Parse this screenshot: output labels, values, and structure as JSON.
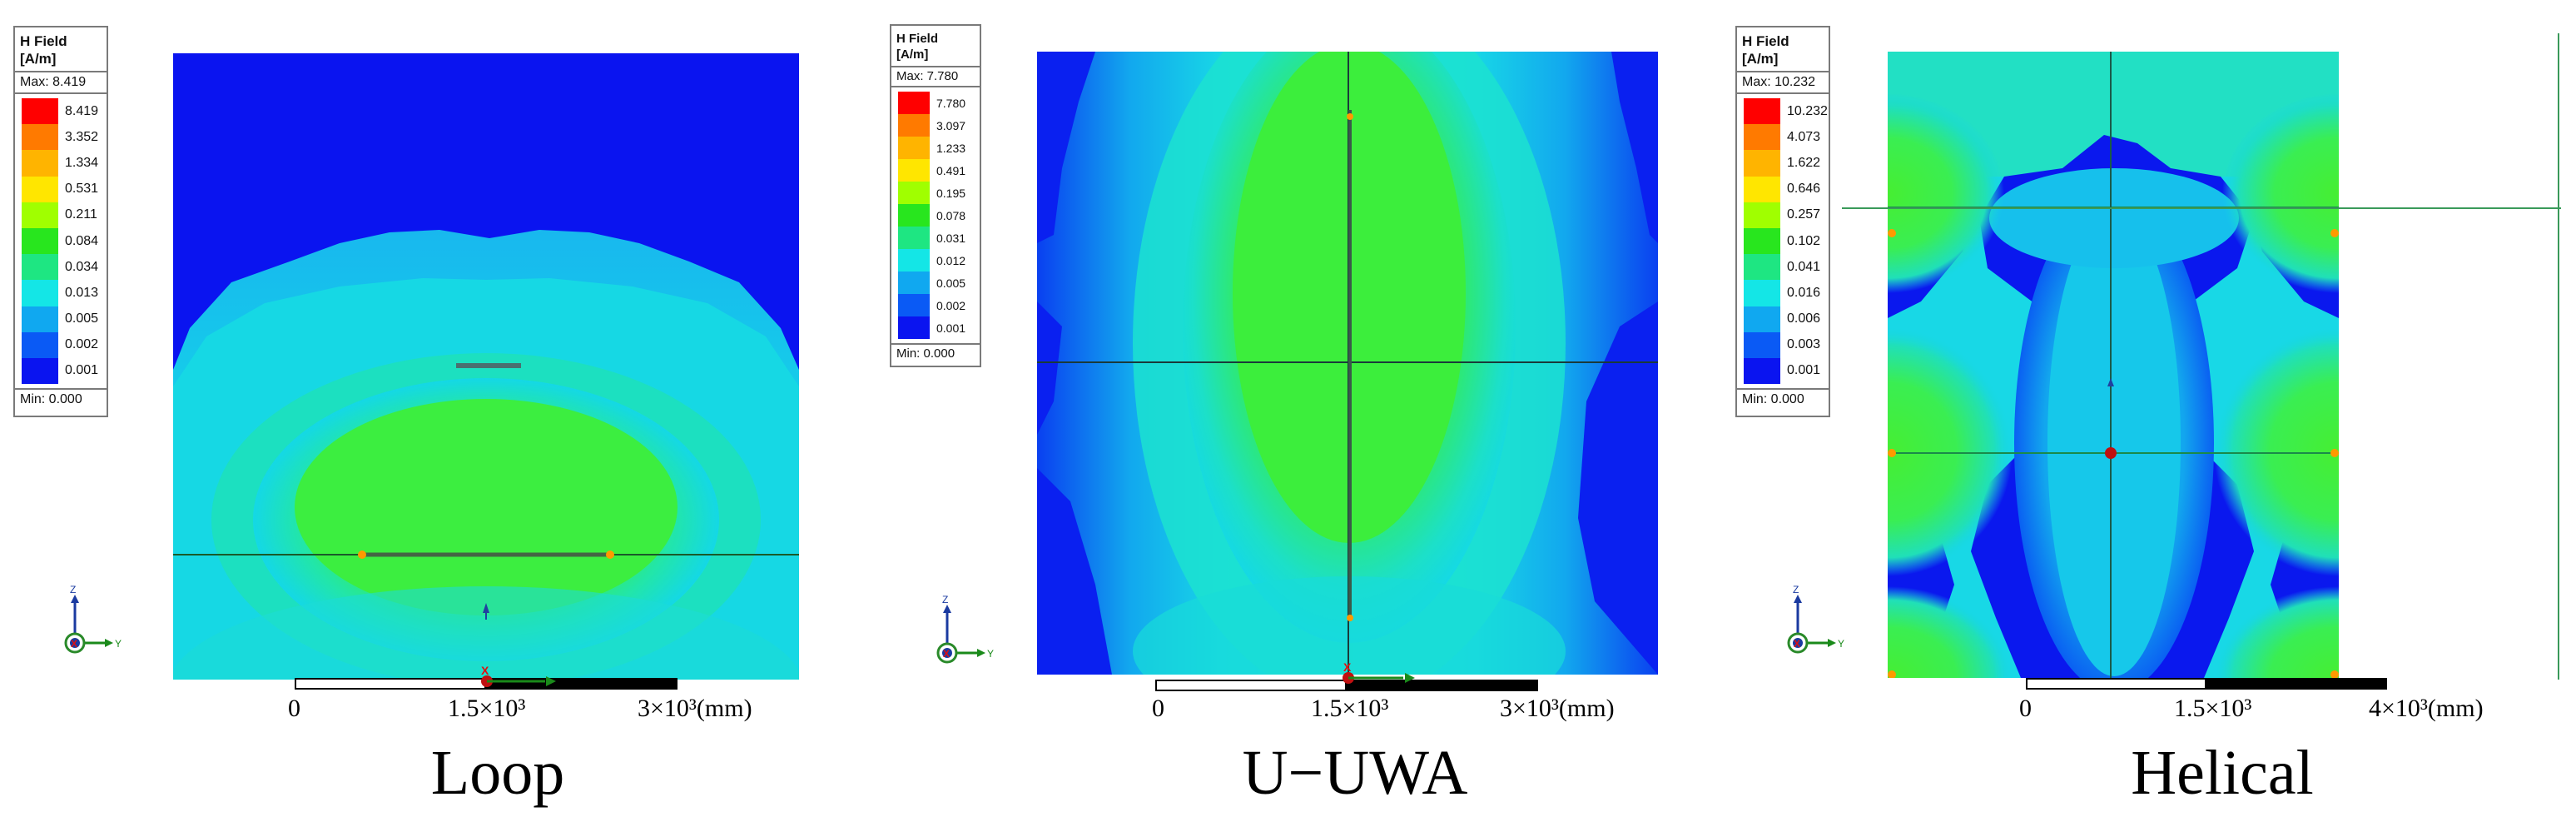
{
  "colors": {
    "background": "#ffffff",
    "blue": "#0a14f0",
    "green": "#3cf028",
    "cyan": "#14e6e6"
  },
  "panels": [
    {
      "caption": "Loop",
      "legend": {
        "title_line1": "H Field",
        "title_line2": "[A/m]",
        "max": "Max: 8.419",
        "min": "Min: 0.000",
        "levels": [
          "8.419",
          "3.352",
          "1.334",
          "0.531",
          "0.211",
          "0.084",
          "0.034",
          "0.013",
          "0.005",
          "0.002",
          "0.001"
        ]
      },
      "scale": {
        "ticks": [
          "0",
          "1.5×10³",
          "3×10³(mm)"
        ]
      }
    },
    {
      "caption": "U−UWA",
      "legend": {
        "title_line1": "H Field",
        "title_line2": "[A/m]",
        "max": "Max: 7.780",
        "min": "Min: 0.000",
        "levels": [
          "7.780",
          "3.097",
          "1.233",
          "0.491",
          "0.195",
          "0.078",
          "0.031",
          "0.012",
          "0.005",
          "0.002",
          "0.001"
        ]
      },
      "scale": {
        "ticks": [
          "0",
          "1.5×10³",
          "3×10³(mm)"
        ]
      }
    },
    {
      "caption": "Helical",
      "legend": {
        "title_line1": "H Field",
        "title_line2": "[A/m]",
        "max": "Max: 10.232",
        "min": "Min: 0.000",
        "levels": [
          "10.232",
          "4.073",
          "1.622",
          "0.646",
          "0.257",
          "0.102",
          "0.041",
          "0.016",
          "0.006",
          "0.003",
          "0.001"
        ]
      },
      "scale": {
        "ticks": [
          "0",
          "1.5×10³",
          "4×10³(mm)"
        ]
      }
    }
  ],
  "legend_colors": [
    "#ff0000",
    "#ff7a00",
    "#ffb400",
    "#ffe600",
    "#a0ff00",
    "#28e61e",
    "#1ee682",
    "#14e6e6",
    "#10a8f0",
    "#0a5af5",
    "#0a14f0"
  ],
  "triad_labels": {
    "z": "Z",
    "x": "X",
    "y": "Y"
  }
}
